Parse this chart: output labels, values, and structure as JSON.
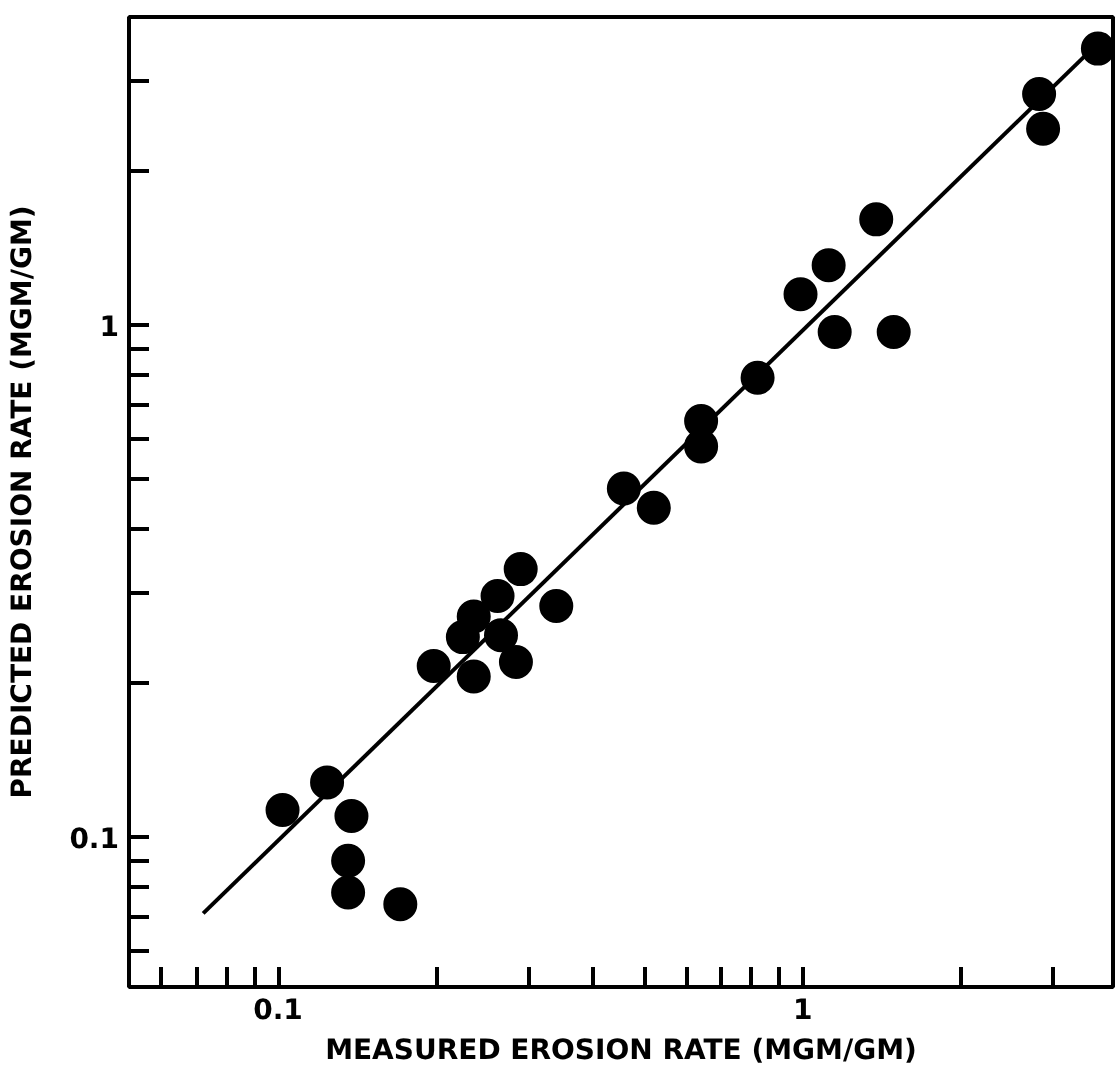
{
  "chart_data": {
    "type": "scatter",
    "xlabel": "MEASURED EROSION RATE (MGM/GM)",
    "ylabel": "PREDICTED EROSION RATE (MGM/GM)",
    "log": "xy",
    "grid": false,
    "marker": "circle",
    "xlim": [
      0.052,
      3.9
    ],
    "ylim": [
      0.051,
      4.0
    ],
    "xticks": [
      {
        "value": 0.06,
        "label": null
      },
      {
        "value": 0.07,
        "label": null
      },
      {
        "value": 0.08,
        "label": null
      },
      {
        "value": 0.09,
        "label": null
      },
      0.1,
      {
        "value": 0.2,
        "label": null
      },
      {
        "value": 0.3,
        "label": null
      },
      {
        "value": 0.4,
        "label": null
      },
      {
        "value": 0.5,
        "label": null
      },
      {
        "value": 0.6,
        "label": null
      },
      {
        "value": 0.7,
        "label": null
      },
      {
        "value": 0.8,
        "label": null
      },
      {
        "value": 0.9,
        "label": null
      },
      1,
      {
        "value": 2,
        "label": null
      },
      {
        "value": 3,
        "label": null
      }
    ],
    "yticks": [
      {
        "value": 0.06,
        "label": null
      },
      {
        "value": 0.07,
        "label": null
      },
      {
        "value": 0.08,
        "label": null
      },
      {
        "value": 0.09,
        "label": null
      },
      0.1,
      {
        "value": 0.2,
        "label": null
      },
      {
        "value": 0.3,
        "label": null
      },
      {
        "value": 0.4,
        "label": null
      },
      {
        "value": 0.5,
        "label": null
      },
      {
        "value": 0.6,
        "label": null
      },
      {
        "value": 0.7,
        "label": null
      },
      {
        "value": 0.8,
        "label": null
      },
      {
        "value": 0.9,
        "label": null
      },
      1,
      {
        "value": 2,
        "label": null
      },
      {
        "value": 3,
        "label": null
      }
    ],
    "series": [
      {
        "type": "line",
        "color": "#000000",
        "marker": "none",
        "x": [
          0.072,
          3.8
        ],
        "values": [
          0.071,
          3.7
        ]
      },
      {
        "color": "#000000",
        "x": [
          3.65,
          2.82,
          2.87,
          1.38,
          1.12,
          0.99,
          1.15,
          1.49,
          0.82,
          0.64,
          0.64,
          0.456,
          0.52,
          0.29,
          0.339,
          0.262,
          0.236,
          0.225,
          0.266,
          0.198,
          0.236,
          0.284,
          0.124,
          0.102,
          0.138,
          0.136,
          0.136,
          0.171
        ],
        "values": [
          3.47,
          2.83,
          2.42,
          1.61,
          1.31,
          1.15,
          0.97,
          0.97,
          0.79,
          0.65,
          0.58,
          0.48,
          0.44,
          0.334,
          0.283,
          0.296,
          0.27,
          0.246,
          0.248,
          0.216,
          0.206,
          0.22,
          0.128,
          0.113,
          0.11,
          0.09,
          0.078,
          0.074
        ]
      }
    ]
  }
}
